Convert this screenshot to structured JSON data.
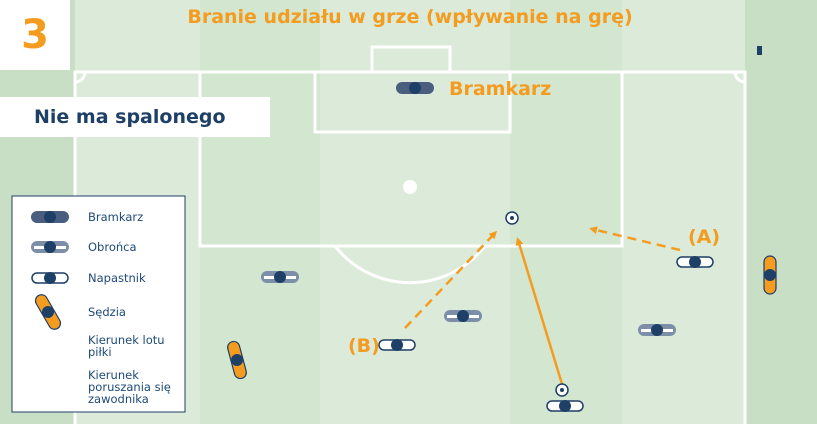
{
  "badge": "3",
  "title": "Branie udziału w grze (wpływanie na grę)",
  "subtitle": "Nie ma spalonego",
  "field_labels": {
    "goalkeeper": "Bramkarz",
    "a": "(A)",
    "b": "(B)"
  },
  "legend": {
    "items": [
      "Bramkarz",
      "Obrońca",
      "Napastnik",
      "Sędzia",
      "Kierunek lotu piłki",
      "Kierunek poruszania się zawodnika"
    ]
  }
}
